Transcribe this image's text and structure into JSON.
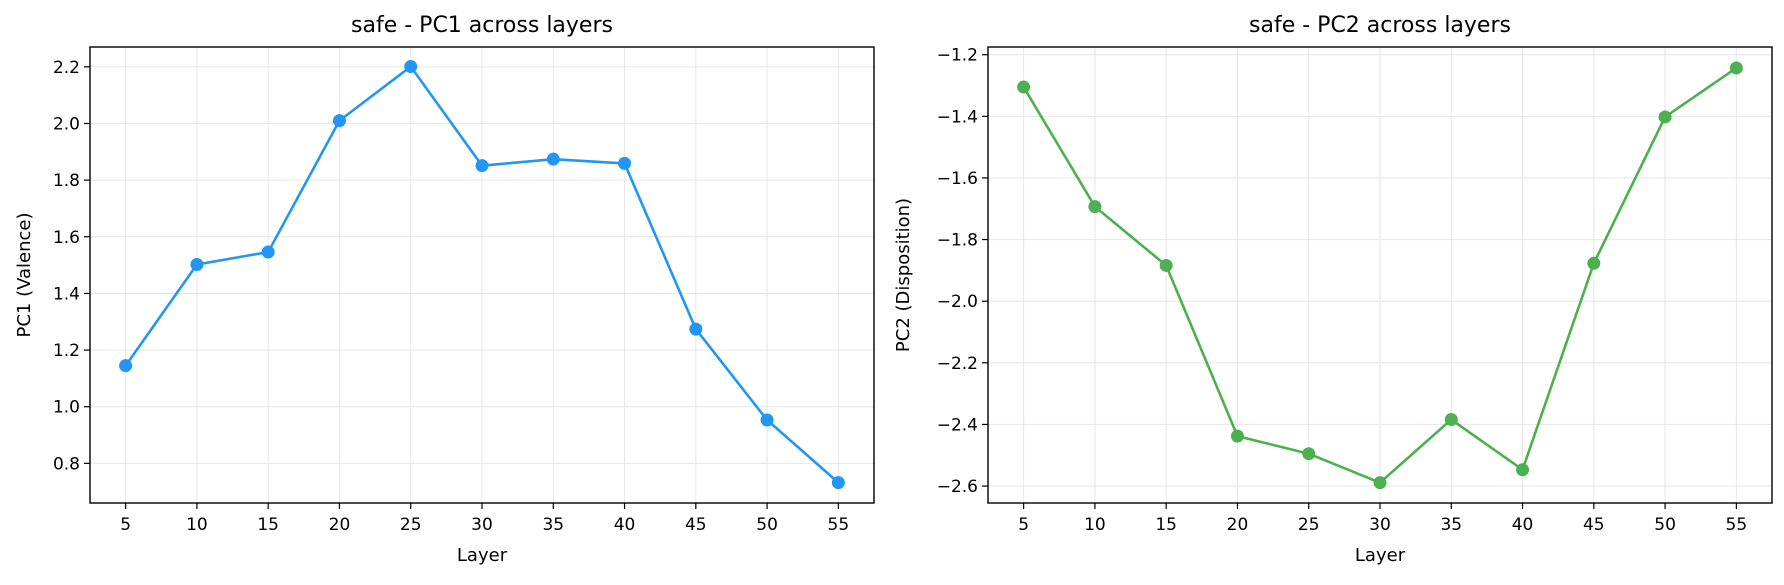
{
  "chart_data": [
    {
      "type": "line",
      "title": "safe - PC1 across layers",
      "xlabel": "Layer",
      "ylabel": "PC1 (Valence)",
      "x": [
        5,
        10,
        15,
        20,
        25,
        30,
        35,
        40,
        45,
        50,
        55
      ],
      "xticks": [
        5,
        10,
        15,
        20,
        25,
        30,
        35,
        40,
        45,
        50,
        55
      ],
      "xtick_labels": [
        "5",
        "10",
        "15",
        "20",
        "25",
        "30",
        "35",
        "40",
        "45",
        "50",
        "55"
      ],
      "yticks": [
        0.8,
        1.0,
        1.2,
        1.4,
        1.6,
        1.8,
        2.0,
        2.2
      ],
      "ytick_labels": [
        "0.8",
        "1.0",
        "1.2",
        "1.4",
        "1.6",
        "1.8",
        "2.0",
        "2.2"
      ],
      "xlim": [
        2.5,
        57.5
      ],
      "ylim": [
        0.66,
        2.27
      ],
      "grid": true,
      "series": [
        {
          "color": "#2196F3",
          "values": [
            1.145,
            1.502,
            1.546,
            2.01,
            2.201,
            1.851,
            1.874,
            1.859,
            1.274,
            0.953,
            0.732
          ]
        }
      ]
    },
    {
      "type": "line",
      "title": "safe - PC2 across layers",
      "xlabel": "Layer",
      "ylabel": "PC2 (Disposition)",
      "x": [
        5,
        10,
        15,
        20,
        25,
        30,
        35,
        40,
        45,
        50,
        55
      ],
      "xticks": [
        5,
        10,
        15,
        20,
        25,
        30,
        35,
        40,
        45,
        50,
        55
      ],
      "xtick_labels": [
        "5",
        "10",
        "15",
        "20",
        "25",
        "30",
        "35",
        "40",
        "45",
        "50",
        "55"
      ],
      "yticks": [
        -2.6,
        -2.4,
        -2.2,
        -2.0,
        -1.8,
        -1.6,
        -1.4,
        -1.2
      ],
      "ytick_labels": [
        "−2.6",
        "−2.4",
        "−2.2",
        "−2.0",
        "−1.8",
        "−1.6",
        "−1.4",
        "−1.2"
      ],
      "xlim": [
        2.5,
        57.5
      ],
      "ylim": [
        -2.655,
        -1.175
      ],
      "grid": true,
      "series": [
        {
          "color": "#4CAF50",
          "values": [
            -1.305,
            -1.693,
            -1.884,
            -2.438,
            -2.495,
            -2.589,
            -2.384,
            -2.547,
            -1.877,
            -1.402,
            -1.243
          ]
        }
      ]
    }
  ]
}
